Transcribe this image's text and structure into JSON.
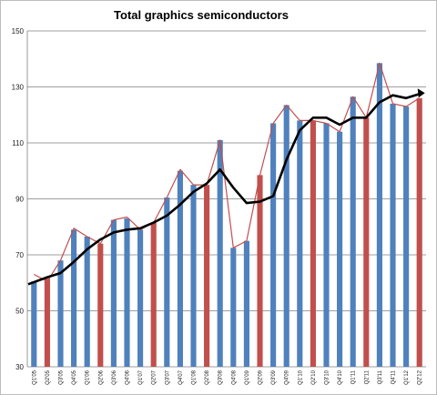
{
  "chart_data": {
    "type": "bar",
    "title": "Total graphics semiconductors",
    "xlabel": "",
    "ylabel": "",
    "ylim": [
      30,
      150
    ],
    "yticks": [
      30,
      50,
      70,
      90,
      110,
      130,
      150
    ],
    "grid": true,
    "categories": [
      "Q1'05",
      "Q2'05",
      "Q3'05",
      "Q4'05",
      "Q1'06",
      "Q2'06",
      "Q3'06",
      "Q4'06",
      "Q1'07",
      "Q2'07",
      "Q3'07",
      "Q4'07",
      "Q1'08",
      "Q2'08",
      "Q3'08",
      "Q4'08",
      "Q1'09",
      "Q2'09",
      "Q3'09",
      "Q4'09",
      "Q1'10",
      "Q2'10",
      "Q3'10",
      "Q4'10",
      "Q1'11",
      "Q2'11",
      "Q3'11",
      "Q4'11",
      "Q1'12",
      "Q2'12"
    ],
    "values": [
      60.5,
      61.5,
      68,
      79,
      76.5,
      74,
      82.5,
      83,
      79,
      81.5,
      90.5,
      100,
      95,
      95,
      111,
      72.5,
      75,
      98.5,
      117,
      123.5,
      118,
      118,
      117,
      114,
      126.5,
      119,
      138.5,
      124,
      123,
      126
    ],
    "bar_colors": [
      "#4f81bd",
      "#c0504d",
      "#4f81bd",
      "#4f81bd",
      "#4f81bd",
      "#c0504d",
      "#4f81bd",
      "#4f81bd",
      "#4f81bd",
      "#c0504d",
      "#4f81bd",
      "#4f81bd",
      "#4f81bd",
      "#c0504d",
      "#4f81bd",
      "#4f81bd",
      "#4f81bd",
      "#c0504d",
      "#4f81bd",
      "#4f81bd",
      "#4f81bd",
      "#c0504d",
      "#4f81bd",
      "#4f81bd",
      "#4f81bd",
      "#c0504d",
      "#4f81bd",
      "#4f81bd",
      "#4f81bd",
      "#c0504d"
    ],
    "outline_series": {
      "color": "#c0504d",
      "values": [
        63,
        60.5,
        68,
        79.5,
        76.5,
        74,
        82.5,
        83.5,
        79,
        81.5,
        90.5,
        100.5,
        95,
        95,
        111,
        72.5,
        75,
        98.5,
        117,
        123.5,
        118,
        118,
        117,
        114,
        126.5,
        119,
        138.5,
        124,
        123,
        126
      ]
    },
    "trend_series": {
      "color": "#000000",
      "values": [
        59.5,
        62,
        63.5,
        67.5,
        72,
        75.5,
        78,
        79,
        79.5,
        81.5,
        84,
        88,
        92.5,
        95.5,
        100.5,
        94,
        88.5,
        89,
        91,
        104,
        114.5,
        119,
        119,
        116.5,
        119,
        119,
        124.5,
        127,
        126,
        127.5
      ]
    }
  }
}
